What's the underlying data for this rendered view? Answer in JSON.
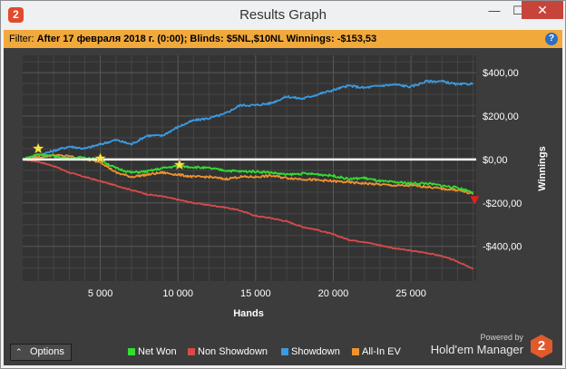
{
  "window": {
    "title": "Results Graph",
    "app_icon_text": "2",
    "minimize_glyph": "—",
    "maximize_glyph": "☐",
    "close_glyph": "✕"
  },
  "filter": {
    "label": "Filter:",
    "value": "After 17 февраля 2018 г. (0:00); Blinds: $5NL,$10NL  Winnings: -$153,53",
    "help_glyph": "?"
  },
  "colors": {
    "net_won": "#33dd33",
    "non_showdown": "#d84a4a",
    "showdown": "#3b9be0",
    "all_in_ev": "#f0922d",
    "zero_line": "#ffffff",
    "star": "#f5e34a"
  },
  "chart_data": {
    "type": "line",
    "xlabel": "Hands",
    "ylabel": "Winnings",
    "xlim": [
      0,
      29200
    ],
    "ylim": [
      -560,
      480
    ],
    "x_ticks": [
      {
        "value": 5000,
        "label": "5 000"
      },
      {
        "value": 10000,
        "label": "10 000"
      },
      {
        "value": 15000,
        "label": "15 000"
      },
      {
        "value": 20000,
        "label": "20 000"
      },
      {
        "value": 25000,
        "label": "25 000"
      }
    ],
    "y_ticks": [
      {
        "value": 400,
        "label": "$400,00"
      },
      {
        "value": 200,
        "label": "$200,00"
      },
      {
        "value": 0,
        "label": "$0,00"
      },
      {
        "value": -200,
        "label": "-$200,00"
      },
      {
        "value": -400,
        "label": "-$400,00"
      }
    ],
    "grid": true,
    "legend_position": "bottom",
    "x": [
      0,
      1000,
      2000,
      3000,
      4000,
      5000,
      6000,
      7000,
      8000,
      9000,
      10000,
      11000,
      12000,
      13000,
      14000,
      15000,
      16000,
      17000,
      18000,
      19000,
      20000,
      21000,
      22000,
      23000,
      24000,
      25000,
      26000,
      27000,
      28000,
      29000
    ],
    "series": [
      {
        "name": "Net Won",
        "key": "net_won",
        "values": [
          0,
          25,
          15,
          5,
          10,
          -2,
          -40,
          -60,
          -55,
          -40,
          -30,
          -35,
          -40,
          -50,
          -55,
          -55,
          -60,
          -70,
          -65,
          -68,
          -75,
          -90,
          -85,
          -100,
          -105,
          -110,
          -110,
          -120,
          -130,
          -150
        ]
      },
      {
        "name": "Non Showdown",
        "key": "non_showdown",
        "values": [
          0,
          -10,
          -30,
          -60,
          -80,
          -100,
          -120,
          -140,
          -160,
          -170,
          -185,
          -200,
          -210,
          -220,
          -235,
          -260,
          -270,
          -285,
          -310,
          -325,
          -345,
          -370,
          -380,
          -395,
          -410,
          -420,
          -430,
          -445,
          -470,
          -505
        ]
      },
      {
        "name": "Showdown",
        "key": "showdown",
        "values": [
          0,
          20,
          40,
          60,
          50,
          70,
          90,
          70,
          110,
          110,
          150,
          180,
          190,
          210,
          250,
          250,
          260,
          290,
          280,
          300,
          320,
          340,
          330,
          340,
          345,
          335,
          360,
          360,
          345,
          350
        ]
      },
      {
        "name": "All-In EV",
        "key": "all_in_ev",
        "values": [
          0,
          10,
          20,
          15,
          0,
          -10,
          -60,
          -80,
          -70,
          -60,
          -70,
          -80,
          -80,
          -90,
          -80,
          -80,
          -75,
          -85,
          -90,
          -95,
          -100,
          -105,
          -110,
          -115,
          -120,
          -120,
          -125,
          -135,
          -140,
          -160
        ]
      }
    ],
    "markers": [
      {
        "kind": "star",
        "x": 1000,
        "y": 50
      },
      {
        "kind": "star",
        "x": 5000,
        "y": 5
      },
      {
        "kind": "star",
        "x": 10100,
        "y": -25
      },
      {
        "kind": "down-arrow",
        "x": 29100,
        "y": -190
      }
    ]
  },
  "options_button": {
    "label": "Options",
    "chevron": "⌃"
  },
  "legend": [
    {
      "key": "net_won",
      "label": "Net Won"
    },
    {
      "key": "non_showdown",
      "label": "Non Showdown"
    },
    {
      "key": "showdown",
      "label": "Showdown"
    },
    {
      "key": "all_in_ev",
      "label": "All-In EV"
    }
  ],
  "brand": {
    "powered_by": "Powered by",
    "name": "Hold'em Manager",
    "logo_text": "2"
  }
}
